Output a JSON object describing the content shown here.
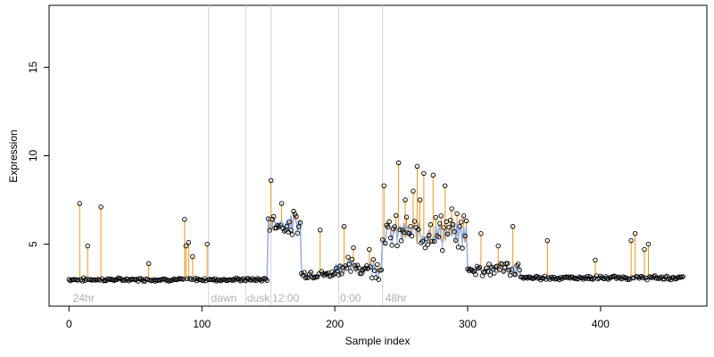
{
  "chart_data": {
    "type": "scatter",
    "xlabel": "Sample index",
    "ylabel": "Expression",
    "xlim": [
      -15,
      480
    ],
    "ylim": [
      1.5,
      18.5
    ],
    "x_ticks": [
      0,
      100,
      200,
      300,
      400
    ],
    "y_ticks": [
      5,
      10,
      15
    ],
    "grid": false,
    "legend": "none",
    "colors": {
      "points": "#000000",
      "fit_line": "#8fa8d8",
      "residual_up": "#f0961e",
      "residual_down": "#8fa8d8",
      "divider": "#d3d3d3",
      "annotation": "#b0b0b0"
    },
    "dividers": [
      105,
      133,
      152,
      203,
      236
    ],
    "annotations": [
      {
        "x": 3,
        "label": "24hr"
      },
      {
        "x": 107,
        "label": "dawn"
      },
      {
        "x": 134,
        "label": "dusk"
      },
      {
        "x": 153,
        "label": "12:00"
      },
      {
        "x": 204,
        "label": "0:00"
      },
      {
        "x": 238,
        "label": "48hr"
      }
    ],
    "peaks": [
      {
        "x": 8,
        "y": 7.3
      },
      {
        "x": 14,
        "y": 4.9
      },
      {
        "x": 24,
        "y": 7.1
      },
      {
        "x": 60,
        "y": 3.9
      },
      {
        "x": 87,
        "y": 6.4
      },
      {
        "x": 88,
        "y": 4.9
      },
      {
        "x": 90,
        "y": 5.1
      },
      {
        "x": 93,
        "y": 4.3
      },
      {
        "x": 104,
        "y": 5.0
      },
      {
        "x": 152,
        "y": 8.6
      },
      {
        "x": 160,
        "y": 7.3
      },
      {
        "x": 167,
        "y": 5.8
      },
      {
        "x": 189,
        "y": 5.8
      },
      {
        "x": 207,
        "y": 6.0
      },
      {
        "x": 214,
        "y": 4.8
      },
      {
        "x": 226,
        "y": 4.7
      },
      {
        "x": 237,
        "y": 8.3
      },
      {
        "x": 248,
        "y": 9.6
      },
      {
        "x": 253,
        "y": 7.5
      },
      {
        "x": 259,
        "y": 8.0
      },
      {
        "x": 262,
        "y": 9.4
      },
      {
        "x": 264,
        "y": 7.5
      },
      {
        "x": 267,
        "y": 9.0
      },
      {
        "x": 272,
        "y": 6.1
      },
      {
        "x": 274,
        "y": 8.9
      },
      {
        "x": 280,
        "y": 6.6
      },
      {
        "x": 283,
        "y": 8.3
      },
      {
        "x": 288,
        "y": 7.0
      },
      {
        "x": 294,
        "y": 6.0
      },
      {
        "x": 297,
        "y": 6.6
      },
      {
        "x": 310,
        "y": 5.6
      },
      {
        "x": 323,
        "y": 4.9
      },
      {
        "x": 334,
        "y": 6.0
      },
      {
        "x": 360,
        "y": 5.2
      },
      {
        "x": 396,
        "y": 4.1
      },
      {
        "x": 423,
        "y": 5.2
      },
      {
        "x": 426,
        "y": 5.6
      },
      {
        "x": 433,
        "y": 4.7
      },
      {
        "x": 436,
        "y": 5.0
      }
    ],
    "segments": [
      {
        "x0": 0,
        "x1": 150,
        "base": 3.0,
        "noise": 0.12
      },
      {
        "x0": 150,
        "x1": 175,
        "base": 6.2,
        "noise": 0.9
      },
      {
        "x0": 175,
        "x1": 200,
        "base": 3.3,
        "noise": 0.3
      },
      {
        "x0": 200,
        "x1": 236,
        "base": 3.7,
        "noise": 0.8
      },
      {
        "x0": 236,
        "x1": 300,
        "base": 5.6,
        "noise": 1.3
      },
      {
        "x0": 300,
        "x1": 340,
        "base": 3.6,
        "noise": 0.6
      },
      {
        "x0": 340,
        "x1": 463,
        "base": 3.1,
        "noise": 0.15
      }
    ]
  }
}
